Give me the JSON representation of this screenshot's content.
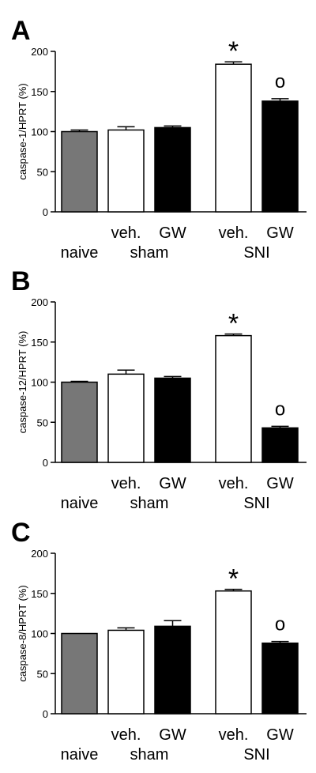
{
  "chart_data": [
    {
      "type": "bar",
      "panel_label": "A",
      "ylabel": "caspase-1/HPRT (%)",
      "ylim": [
        0,
        200
      ],
      "yticks": [
        0,
        50,
        100,
        150,
        200
      ],
      "categories": [
        "naive",
        "veh.",
        "GW",
        "veh.",
        "GW"
      ],
      "groups": [
        {
          "label": "naive",
          "categories": [
            0
          ]
        },
        {
          "label": "sham",
          "categories": [
            1,
            2
          ]
        },
        {
          "label": "SNI",
          "categories": [
            3,
            4
          ]
        }
      ],
      "values": [
        100,
        102,
        105,
        184,
        138
      ],
      "errors": [
        2,
        4,
        2,
        3,
        3
      ],
      "colors": [
        "#777777",
        "#ffffff",
        "#000000",
        "#ffffff",
        "#000000"
      ],
      "annotations": [
        {
          "category": 3,
          "text": "*"
        },
        {
          "category": 4,
          "text": "o"
        }
      ]
    },
    {
      "type": "bar",
      "panel_label": "B",
      "ylabel": "caspase-12/HPRT (%)",
      "ylim": [
        0,
        200
      ],
      "yticks": [
        0,
        50,
        100,
        150,
        200
      ],
      "categories": [
        "naive",
        "veh.",
        "GW",
        "veh.",
        "GW"
      ],
      "groups": [
        {
          "label": "naive",
          "categories": [
            0
          ]
        },
        {
          "label": "sham",
          "categories": [
            1,
            2
          ]
        },
        {
          "label": "SNI",
          "categories": [
            3,
            4
          ]
        }
      ],
      "values": [
        100,
        110,
        105,
        158,
        43
      ],
      "errors": [
        1,
        5,
        2,
        2,
        2
      ],
      "colors": [
        "#777777",
        "#ffffff",
        "#000000",
        "#ffffff",
        "#000000"
      ],
      "annotations": [
        {
          "category": 3,
          "text": "*"
        },
        {
          "category": 4,
          "text": "o"
        }
      ]
    },
    {
      "type": "bar",
      "panel_label": "C",
      "ylabel": "caspase-8/HPRT (%)",
      "ylim": [
        0,
        200
      ],
      "yticks": [
        0,
        50,
        100,
        150,
        200
      ],
      "categories": [
        "naive",
        "veh.",
        "GW",
        "veh.",
        "GW"
      ],
      "groups": [
        {
          "label": "naive",
          "categories": [
            0
          ]
        },
        {
          "label": "sham",
          "categories": [
            1,
            2
          ]
        },
        {
          "label": "SNI",
          "categories": [
            3,
            4
          ]
        }
      ],
      "values": [
        100,
        104,
        109,
        153,
        88
      ],
      "errors": [
        0,
        3,
        7,
        2,
        2
      ],
      "colors": [
        "#777777",
        "#ffffff",
        "#000000",
        "#ffffff",
        "#000000"
      ],
      "annotations": [
        {
          "category": 3,
          "text": "*"
        },
        {
          "category": 4,
          "text": "o"
        }
      ]
    }
  ]
}
